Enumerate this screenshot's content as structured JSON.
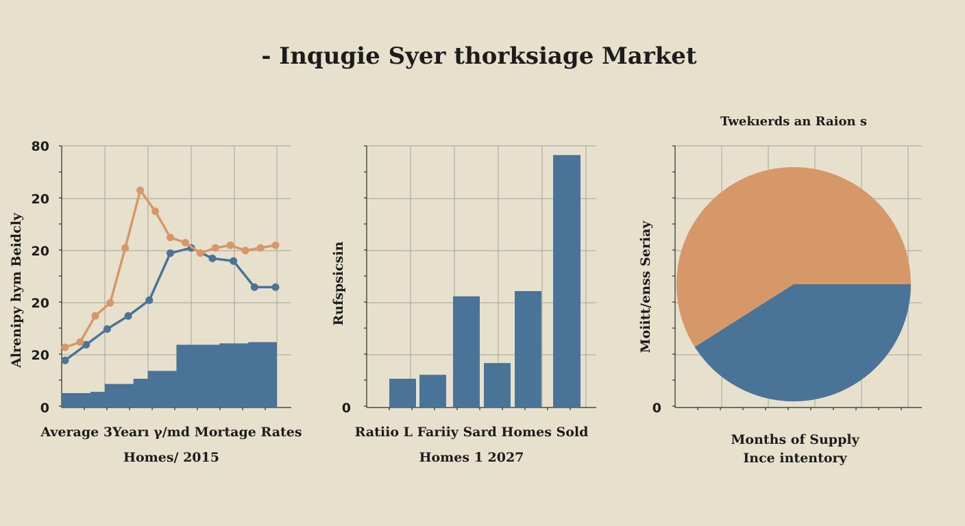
{
  "title": "- Inqugie Syer thorksiage Market",
  "colors": {
    "background": "#e6e0cd",
    "blue": "#4a7398",
    "orange": "#d69868",
    "grid": "#a8a294"
  },
  "chart_data": [
    {
      "type": "line",
      "ylabel": "Alrenipy hym Beidcly",
      "xlabel": "Average 3Yearı γ/md Mortage Rates",
      "caption": "Homes/ 2015",
      "yticks": [
        "0",
        "20",
        "20",
        "20",
        "20",
        "80"
      ],
      "ylim": [
        0,
        100
      ],
      "grid": true,
      "series": [
        {
          "color": "#4a7398",
          "x": [
            0,
            1,
            2,
            3,
            4,
            5,
            6,
            7,
            8,
            9,
            10
          ],
          "values": [
            18,
            24,
            30,
            35,
            41,
            59,
            61,
            57,
            56,
            46,
            46
          ]
        },
        {
          "color": "#d69868",
          "x": [
            0,
            1,
            2,
            3,
            4,
            5,
            6,
            7,
            8,
            9,
            10,
            11,
            12,
            13,
            14
          ],
          "values": [
            23,
            25,
            35,
            40,
            61,
            83,
            75,
            65,
            63,
            59,
            61,
            62,
            60,
            61,
            62
          ]
        }
      ],
      "area_series": {
        "color": "#4a7398",
        "values": [
          5.5,
          5.5,
          6,
          9,
          9,
          11,
          14,
          14,
          24,
          24,
          24,
          24.5,
          24.5,
          25,
          25
        ]
      }
    },
    {
      "type": "bar",
      "ylabel": "Rufspsicsin",
      "xlabel": "Ratiio L Fariiy Sard Homes Sold",
      "caption": "Homes 1 2027",
      "yticks": [
        "0"
      ],
      "ylim": [
        0,
        100
      ],
      "grid": true,
      "series": [
        {
          "color": "#4a7398",
          "values": [
            11,
            12.5,
            42.5,
            17,
            44.5,
            96.5
          ]
        }
      ]
    },
    {
      "type": "pie",
      "title": "Twekıerds an Raion s",
      "ylabel": "Moiitt/enss Seriay",
      "xlabel": "Months of Supply",
      "caption": "Ince intentory",
      "yticks": [
        "0"
      ],
      "grid": true,
      "slices": [
        {
          "color": "#d69868",
          "value": 59
        },
        {
          "color": "#4a7398",
          "value": 41
        }
      ]
    }
  ]
}
